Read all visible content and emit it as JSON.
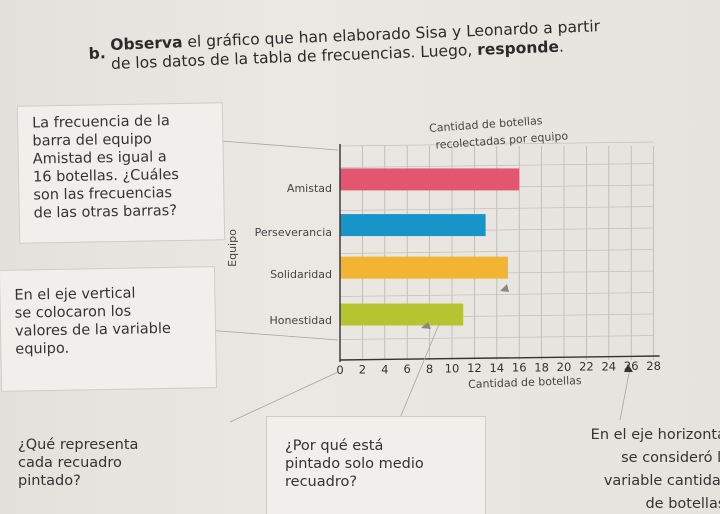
{
  "instruction": {
    "number": "b.",
    "bold": "Observa",
    "line1_rest": " el gráfico que han elaborado Sisa y Leonardo a partir",
    "line2_text": "de los datos de la tabla de frecuencias. Luego, ",
    "line2_bold": "responde",
    "line2_end": "."
  },
  "notes": {
    "note1": [
      "La frecuencia de la",
      "barra del equipo",
      "Amistad es igual a",
      "16 botellas. ¿Cuáles",
      "son las frecuencias",
      "de las otras barras?"
    ],
    "note2": [
      "En el eje vertical",
      "se colocaron los",
      "valores de la variable",
      "equipo."
    ],
    "note3": [
      "¿Qué representa",
      "cada recuadro",
      "pintado?"
    ],
    "note4": [
      "¿Por qué está",
      "pintado solo medio",
      "recuadro?"
    ],
    "note5": [
      "En el eje horizontal",
      "se consideró la",
      "variable cantidad",
      "de botellas."
    ]
  },
  "chart_data": {
    "type": "bar",
    "orientation": "horizontal",
    "title_lines": [
      "Cantidad de botellas",
      "recolectadas por equipo"
    ],
    "xlabel": "Cantidad de botellas",
    "ylabel": "Equipo",
    "xlim": [
      0,
      28
    ],
    "xticks": [
      "0",
      "2",
      "4",
      "6",
      "8",
      "10",
      "12",
      "14",
      "16",
      "18",
      "20",
      "22",
      "24",
      "26",
      "28"
    ],
    "grid": true,
    "categories": [
      "Amistad",
      "Perseverancia",
      "Solidaridad",
      "Honestidad"
    ],
    "values": [
      16,
      13,
      15,
      11
    ],
    "colors": [
      "#e2566f",
      "#1794c8",
      "#f2b431",
      "#b7c431"
    ]
  }
}
